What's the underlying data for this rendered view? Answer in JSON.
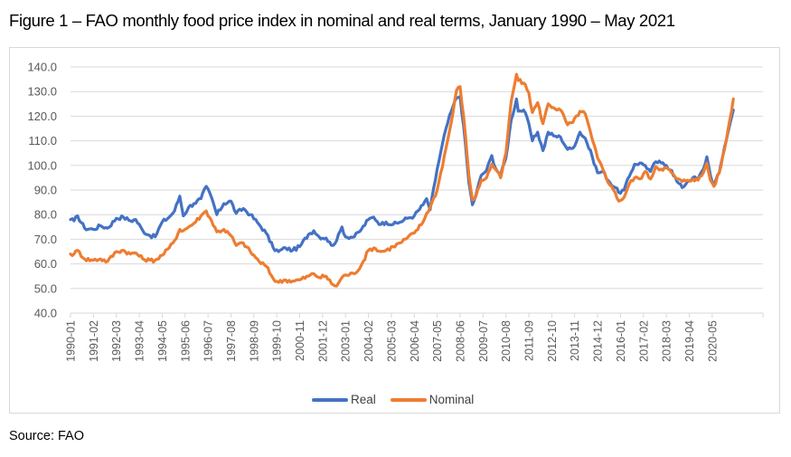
{
  "figure": {
    "title": "Figure 1 – FAO monthly food price index in nominal and real terms, January 1990 – May 2021",
    "source": "Source: FAO"
  },
  "chart_data": {
    "type": "line",
    "title": "Figure 1 – FAO monthly food price index in nominal and real terms, January 1990 – May 2021",
    "xlabel": "",
    "ylabel": "",
    "ylim": [
      40,
      140
    ],
    "y_ticks": [
      "40.0",
      "50.0",
      "60.0",
      "70.0",
      "80.0",
      "90.0",
      "100.0",
      "110.0",
      "120.0",
      "130.0",
      "140.0"
    ],
    "x_tick_labels": [
      "1990-01",
      "1991-02",
      "1992-03",
      "1993-04",
      "1994-05",
      "1995-06",
      "1996-07",
      "1997-08",
      "1998-09",
      "1999-10",
      "2000-11",
      "2001-12",
      "2003-01",
      "2004-02",
      "2005-03",
      "2006-04",
      "2007-05",
      "2008-06",
      "2009-07",
      "2010-08",
      "2011-09",
      "2012-10",
      "2013-11",
      "2014-12",
      "2016-01",
      "2017-02",
      "2018-03",
      "2019-04",
      "2020-05"
    ],
    "x_start": "1990-01",
    "x_end": "2021-05",
    "frequency": "monthly",
    "grid": true,
    "legend_position": "bottom",
    "series": [
      {
        "name": "Real",
        "color": "#4472c4",
        "anchors": [
          [
            "1990-01",
            78.0
          ],
          [
            "1990-03",
            77.5
          ],
          [
            "1990-05",
            79.5
          ],
          [
            "1990-09",
            74.5
          ],
          [
            "1991-02",
            74.0
          ],
          [
            "1991-06",
            75.5
          ],
          [
            "1991-10",
            74.5
          ],
          [
            "1992-03",
            78.5
          ],
          [
            "1992-07",
            79.0
          ],
          [
            "1992-11",
            77.5
          ],
          [
            "1993-02",
            78.0
          ],
          [
            "1993-06",
            73.5
          ],
          [
            "1993-10",
            71.5
          ],
          [
            "1994-01",
            71.0
          ],
          [
            "1994-05",
            77.0
          ],
          [
            "1994-09",
            79.0
          ],
          [
            "1994-12",
            81.5
          ],
          [
            "1995-03",
            87.5
          ],
          [
            "1995-05",
            79.5
          ],
          [
            "1995-08",
            83.0
          ],
          [
            "1995-11",
            84.5
          ],
          [
            "1996-03",
            86.5
          ],
          [
            "1996-06",
            91.5
          ],
          [
            "1996-09",
            87.0
          ],
          [
            "1996-12",
            80.0
          ],
          [
            "1997-04",
            84.5
          ],
          [
            "1997-08",
            85.5
          ],
          [
            "1997-11",
            80.5
          ],
          [
            "1998-03",
            82.5
          ],
          [
            "1998-07",
            80.0
          ],
          [
            "1998-12",
            76.0
          ],
          [
            "1999-04",
            72.5
          ],
          [
            "1999-08",
            66.5
          ],
          [
            "1999-11",
            65.0
          ],
          [
            "2000-03",
            66.5
          ],
          [
            "2000-07",
            65.5
          ],
          [
            "2000-11",
            67.0
          ],
          [
            "2001-04",
            72.0
          ],
          [
            "2001-07",
            73.5
          ],
          [
            "2001-10",
            71.0
          ],
          [
            "2002-02",
            70.5
          ],
          [
            "2002-05",
            67.5
          ],
          [
            "2002-08",
            69.5
          ],
          [
            "2002-11",
            75.0
          ],
          [
            "2003-01",
            71.0
          ],
          [
            "2003-06",
            71.0
          ],
          [
            "2003-10",
            74.0
          ],
          [
            "2004-02",
            78.0
          ],
          [
            "2004-05",
            79.0
          ],
          [
            "2004-09",
            76.0
          ],
          [
            "2004-12",
            77.0
          ],
          [
            "2005-04",
            76.0
          ],
          [
            "2005-08",
            77.0
          ],
          [
            "2005-12",
            78.5
          ],
          [
            "2006-04",
            79.5
          ],
          [
            "2006-09",
            84.0
          ],
          [
            "2006-11",
            86.5
          ],
          [
            "2007-01",
            82.0
          ],
          [
            "2007-05",
            98.5
          ],
          [
            "2007-10",
            115.0
          ],
          [
            "2008-01",
            122.0
          ],
          [
            "2008-04",
            127.5
          ],
          [
            "2008-06",
            128.0
          ],
          [
            "2008-08",
            116.0
          ],
          [
            "2008-11",
            93.0
          ],
          [
            "2009-01",
            84.0
          ],
          [
            "2009-03",
            88.0
          ],
          [
            "2009-06",
            96.0
          ],
          [
            "2009-09",
            98.0
          ],
          [
            "2009-12",
            104.0
          ],
          [
            "2010-02",
            99.0
          ],
          [
            "2010-05",
            96.0
          ],
          [
            "2010-08",
            103.0
          ],
          [
            "2010-11",
            118.5
          ],
          [
            "2011-02",
            127.0
          ],
          [
            "2011-03",
            122.0
          ],
          [
            "2011-06",
            122.5
          ],
          [
            "2011-09",
            117.0
          ],
          [
            "2011-11",
            110.0
          ],
          [
            "2012-02",
            113.5
          ],
          [
            "2012-05",
            106.0
          ],
          [
            "2012-08",
            113.5
          ],
          [
            "2012-11",
            112.0
          ],
          [
            "2013-03",
            111.5
          ],
          [
            "2013-07",
            106.5
          ],
          [
            "2013-10",
            107.0
          ],
          [
            "2014-02",
            113.5
          ],
          [
            "2014-05",
            111.0
          ],
          [
            "2014-09",
            103.5
          ],
          [
            "2014-12",
            97.0
          ],
          [
            "2015-03",
            97.5
          ],
          [
            "2015-07",
            93.0
          ],
          [
            "2015-10",
            91.0
          ],
          [
            "2015-12",
            89.0
          ],
          [
            "2016-03",
            90.0
          ],
          [
            "2016-06",
            95.5
          ],
          [
            "2016-09",
            100.5
          ],
          [
            "2016-12",
            101.0
          ],
          [
            "2017-03",
            100.0
          ],
          [
            "2017-06",
            97.5
          ],
          [
            "2017-09",
            101.5
          ],
          [
            "2017-12",
            101.0
          ],
          [
            "2018-03",
            100.0
          ],
          [
            "2018-06",
            98.0
          ],
          [
            "2018-09",
            93.5
          ],
          [
            "2018-12",
            91.0
          ],
          [
            "2019-03",
            93.5
          ],
          [
            "2019-06",
            95.0
          ],
          [
            "2019-09",
            94.5
          ],
          [
            "2019-12",
            98.5
          ],
          [
            "2020-02",
            103.5
          ],
          [
            "2020-04",
            96.0
          ],
          [
            "2020-06",
            92.0
          ],
          [
            "2020-09",
            97.0
          ],
          [
            "2020-12",
            107.5
          ],
          [
            "2021-03",
            116.5
          ],
          [
            "2021-05",
            122.5
          ]
        ]
      },
      {
        "name": "Nominal",
        "color": "#ed7d31",
        "anchors": [
          [
            "1990-01",
            64.0
          ],
          [
            "1990-03",
            64.0
          ],
          [
            "1990-05",
            65.5
          ],
          [
            "1990-09",
            62.0
          ],
          [
            "1991-02",
            61.5
          ],
          [
            "1991-06",
            62.0
          ],
          [
            "1991-10",
            61.0
          ],
          [
            "1992-03",
            65.0
          ],
          [
            "1992-07",
            65.5
          ],
          [
            "1992-11",
            64.0
          ],
          [
            "1993-02",
            64.5
          ],
          [
            "1993-06",
            62.0
          ],
          [
            "1993-10",
            61.5
          ],
          [
            "1994-01",
            61.5
          ],
          [
            "1994-05",
            63.5
          ],
          [
            "1994-09",
            66.5
          ],
          [
            "1994-12",
            69.5
          ],
          [
            "1995-03",
            74.0
          ],
          [
            "1995-05",
            73.5
          ],
          [
            "1995-08",
            75.0
          ],
          [
            "1995-11",
            76.5
          ],
          [
            "1996-03",
            79.5
          ],
          [
            "1996-06",
            81.5
          ],
          [
            "1996-09",
            77.5
          ],
          [
            "1996-12",
            73.0
          ],
          [
            "1997-04",
            74.0
          ],
          [
            "1997-08",
            71.5
          ],
          [
            "1997-11",
            67.5
          ],
          [
            "1998-03",
            68.5
          ],
          [
            "1998-07",
            65.0
          ],
          [
            "1998-12",
            61.0
          ],
          [
            "1999-04",
            59.0
          ],
          [
            "1999-08",
            54.0
          ],
          [
            "1999-11",
            52.5
          ],
          [
            "2000-03",
            53.5
          ],
          [
            "2000-07",
            53.0
          ],
          [
            "2000-11",
            53.5
          ],
          [
            "2001-04",
            55.0
          ],
          [
            "2001-07",
            56.0
          ],
          [
            "2001-10",
            54.5
          ],
          [
            "2002-02",
            55.0
          ],
          [
            "2002-05",
            52.0
          ],
          [
            "2002-08",
            51.0
          ],
          [
            "2002-11",
            54.5
          ],
          [
            "2003-01",
            55.5
          ],
          [
            "2003-06",
            56.0
          ],
          [
            "2003-10",
            59.5
          ],
          [
            "2004-02",
            65.5
          ],
          [
            "2004-05",
            66.5
          ],
          [
            "2004-09",
            65.0
          ],
          [
            "2004-12",
            65.5
          ],
          [
            "2005-04",
            67.0
          ],
          [
            "2005-08",
            68.5
          ],
          [
            "2005-12",
            70.5
          ],
          [
            "2006-04",
            72.5
          ],
          [
            "2006-09",
            77.0
          ],
          [
            "2006-11",
            80.5
          ],
          [
            "2007-01",
            83.0
          ],
          [
            "2007-05",
            90.0
          ],
          [
            "2007-10",
            107.0
          ],
          [
            "2008-01",
            117.5
          ],
          [
            "2008-04",
            130.5
          ],
          [
            "2008-06",
            132.0
          ],
          [
            "2008-08",
            120.0
          ],
          [
            "2008-11",
            96.0
          ],
          [
            "2009-01",
            86.0
          ],
          [
            "2009-03",
            87.5
          ],
          [
            "2009-06",
            94.0
          ],
          [
            "2009-09",
            95.0
          ],
          [
            "2009-12",
            100.5
          ],
          [
            "2010-02",
            98.5
          ],
          [
            "2010-05",
            95.0
          ],
          [
            "2010-08",
            105.0
          ],
          [
            "2010-11",
            126.0
          ],
          [
            "2011-02",
            137.0
          ],
          [
            "2011-03",
            134.5
          ],
          [
            "2011-06",
            133.5
          ],
          [
            "2011-09",
            129.5
          ],
          [
            "2011-11",
            121.5
          ],
          [
            "2012-02",
            125.5
          ],
          [
            "2012-05",
            117.0
          ],
          [
            "2012-08",
            125.0
          ],
          [
            "2012-11",
            123.5
          ],
          [
            "2013-03",
            122.5
          ],
          [
            "2013-07",
            116.5
          ],
          [
            "2013-10",
            117.5
          ],
          [
            "2014-02",
            122.0
          ],
          [
            "2014-05",
            121.0
          ],
          [
            "2014-09",
            110.5
          ],
          [
            "2014-12",
            103.0
          ],
          [
            "2015-03",
            98.5
          ],
          [
            "2015-07",
            92.0
          ],
          [
            "2015-10",
            89.0
          ],
          [
            "2015-12",
            85.5
          ],
          [
            "2016-03",
            87.0
          ],
          [
            "2016-06",
            92.5
          ],
          [
            "2016-09",
            95.0
          ],
          [
            "2016-12",
            94.5
          ],
          [
            "2017-03",
            97.5
          ],
          [
            "2017-06",
            94.5
          ],
          [
            "2017-09",
            99.5
          ],
          [
            "2017-12",
            98.5
          ],
          [
            "2018-03",
            99.0
          ],
          [
            "2018-06",
            97.0
          ],
          [
            "2018-09",
            94.5
          ],
          [
            "2018-12",
            93.5
          ],
          [
            "2019-03",
            94.0
          ],
          [
            "2019-06",
            94.5
          ],
          [
            "2019-09",
            94.0
          ],
          [
            "2019-12",
            97.0
          ],
          [
            "2020-02",
            101.0
          ],
          [
            "2020-04",
            94.0
          ],
          [
            "2020-06",
            91.5
          ],
          [
            "2020-09",
            97.0
          ],
          [
            "2020-12",
            106.5
          ],
          [
            "2021-03",
            118.5
          ],
          [
            "2021-05",
            127.0
          ]
        ]
      }
    ]
  },
  "legend": {
    "items": [
      {
        "label": "Real",
        "color": "#4472c4"
      },
      {
        "label": "Nominal",
        "color": "#ed7d31"
      }
    ]
  }
}
